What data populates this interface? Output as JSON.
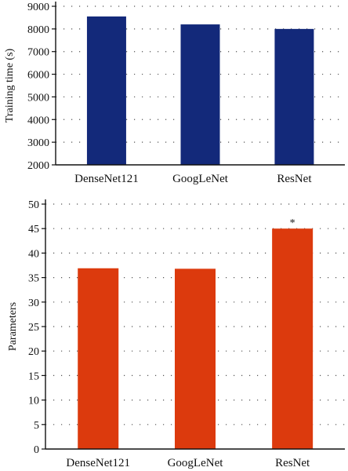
{
  "chart_data": [
    {
      "type": "bar",
      "categories": [
        "DenseNet121",
        "GoogLeNet",
        "ResNet"
      ],
      "values": [
        8550,
        8200,
        8000
      ],
      "ylabel": "Training time (s)",
      "xlabel": "",
      "ylim": [
        2000,
        9000
      ],
      "yticks": [
        2000,
        3000,
        4000,
        5000,
        6000,
        7000,
        8000,
        9000
      ],
      "ytick_labels": [
        "2000",
        "3000",
        "4000",
        "5000",
        "6000",
        "7000",
        "8000",
        "9000"
      ],
      "grid": "dotted horizontal",
      "color": "#13297a",
      "annotations": []
    },
    {
      "type": "bar",
      "categories": [
        "DenseNet121",
        "GoogLeNet",
        "ResNet"
      ],
      "values": [
        36.9,
        36.8,
        45
      ],
      "ylabel": "Parameters",
      "xlabel": "",
      "ylim": [
        0,
        50
      ],
      "yticks": [
        0,
        5,
        10,
        15,
        20,
        25,
        30,
        35,
        40,
        45,
        50
      ],
      "ytick_labels": [
        "0",
        "5",
        "10",
        "15",
        "20",
        "25",
        "30",
        "35",
        "40",
        "45",
        "50"
      ],
      "grid": "dotted horizontal",
      "color": "#dc3a0d",
      "annotations": [
        {
          "category": "ResNet",
          "text": "*"
        }
      ]
    }
  ]
}
